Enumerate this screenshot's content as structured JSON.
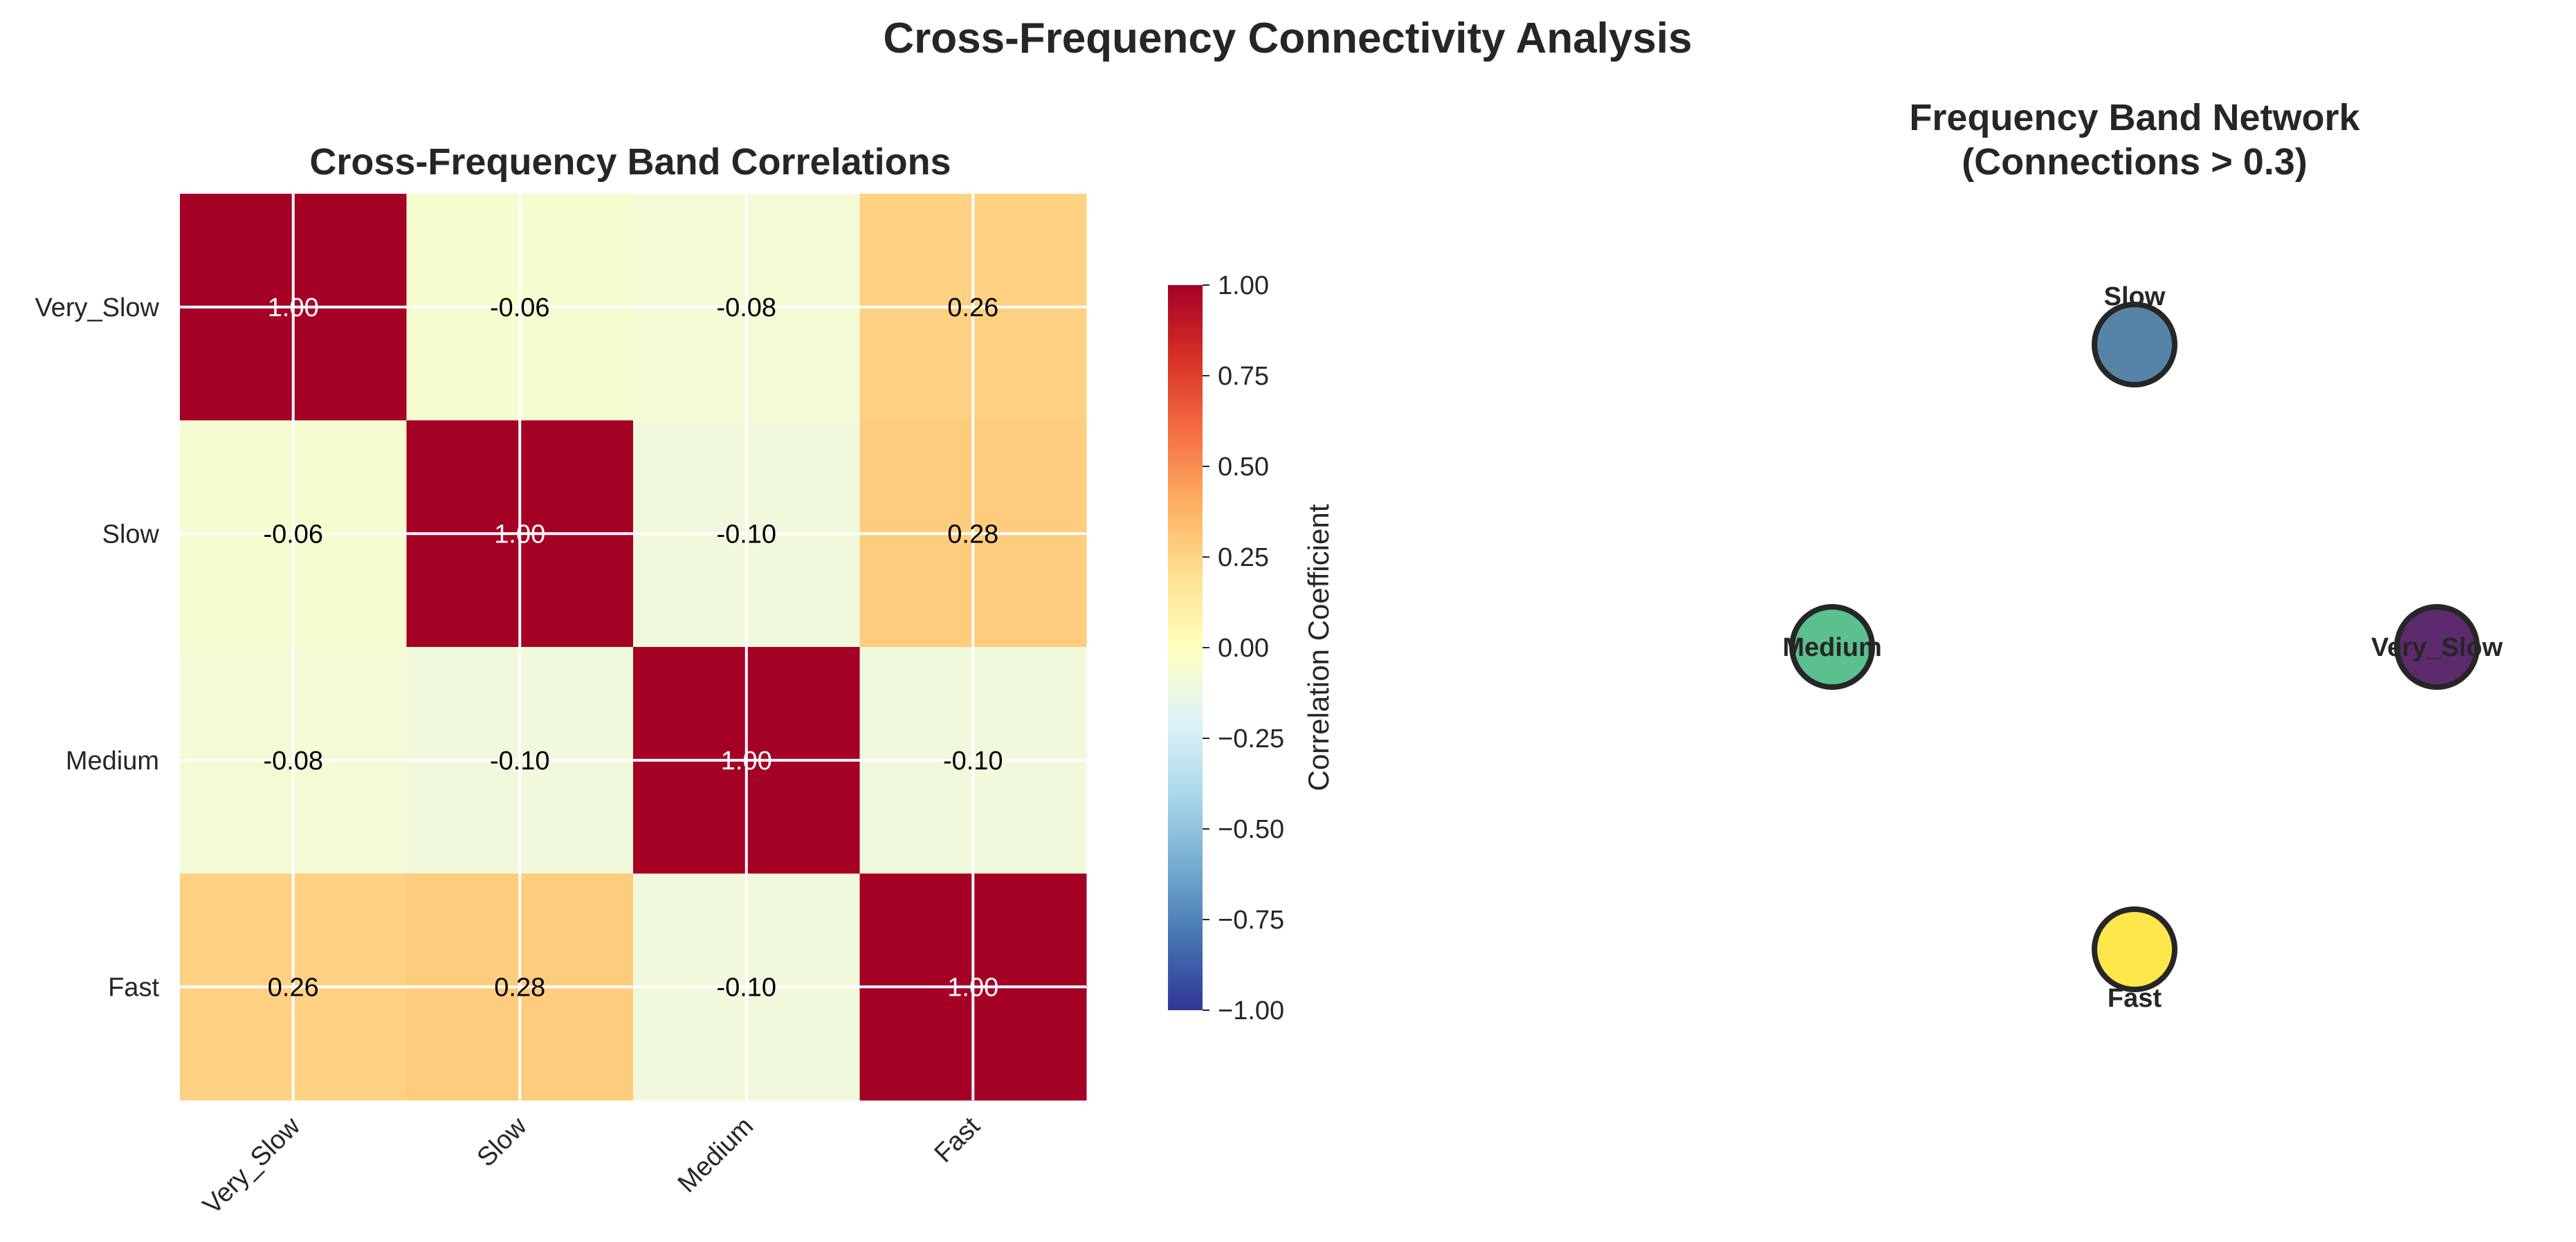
{
  "figure": {
    "title": "Cross-Frequency Connectivity Analysis"
  },
  "chart_data": [
    {
      "type": "heatmap",
      "title": "Cross-Frequency Band Correlations",
      "x_categories": [
        "Very_Slow",
        "Slow",
        "Medium",
        "Fast"
      ],
      "y_categories": [
        "Very_Slow",
        "Slow",
        "Medium",
        "Fast"
      ],
      "values": [
        [
          1.0,
          -0.06,
          -0.08,
          0.26
        ],
        [
          -0.06,
          1.0,
          -0.1,
          0.28
        ],
        [
          -0.08,
          -0.1,
          1.0,
          -0.1
        ],
        [
          0.26,
          0.28,
          -0.1,
          1.0
        ]
      ],
      "value_labels": [
        [
          "1.00",
          "-0.06",
          "-0.08",
          "0.26"
        ],
        [
          "-0.06",
          "1.00",
          "-0.10",
          "0.28"
        ],
        [
          "-0.08",
          "-0.10",
          "1.00",
          "-0.10"
        ],
        [
          "0.26",
          "0.28",
          "-0.10",
          "1.00"
        ]
      ],
      "colormap": "RdYlBu_r",
      "vmin": -1.0,
      "vmax": 1.0,
      "grid": true,
      "colorbar": {
        "label": "Correlation Coefficient",
        "ticks": [
          1.0,
          0.75,
          0.5,
          0.25,
          0.0,
          -0.25,
          -0.5,
          -0.75,
          -1.0
        ],
        "tick_labels": [
          "1.00",
          "0.75",
          "0.50",
          "0.25",
          "0.00",
          "−0.25",
          "−0.50",
          "−0.75",
          "−1.00"
        ]
      }
    },
    {
      "type": "network",
      "title_lines": [
        "Frequency Band Network",
        "(Connections > 0.3)"
      ],
      "threshold": 0.3,
      "nodes": [
        {
          "name": "Very_Slow",
          "label": "Very_Slow",
          "color": "#5e2a6e"
        },
        {
          "name": "Slow",
          "label": "Slow",
          "color": "#5584a8"
        },
        {
          "name": "Medium",
          "label": "Medium",
          "color": "#5bc08d"
        },
        {
          "name": "Fast",
          "label": "Fast",
          "color": "#fde74c"
        }
      ],
      "edges": []
    }
  ]
}
